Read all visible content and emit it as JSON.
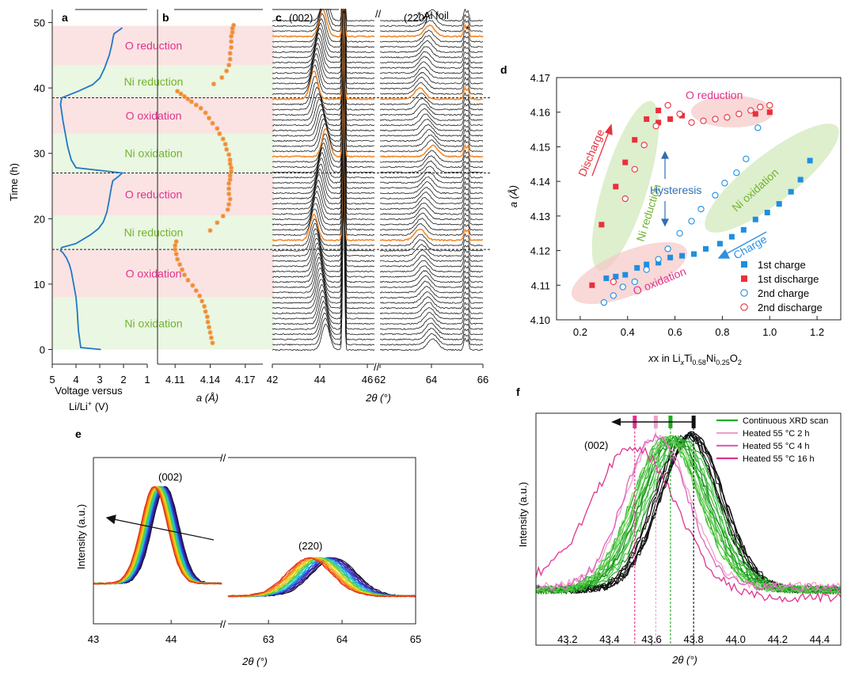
{
  "chart_data": [
    {
      "panel": "a",
      "type": "line",
      "xlabel_line1": "Voltage versus",
      "xlabel_line2": "Li/Li",
      "xlabel_sup": "+",
      "xlabel_end": " (V)",
      "ylabel": "Time (h)",
      "xlim": [
        5,
        1
      ],
      "ylim": [
        -2,
        52
      ],
      "x_ticks": [
        5,
        4,
        3,
        2,
        1
      ],
      "y_ticks": [
        0,
        10,
        20,
        30,
        40,
        50
      ],
      "regions": [
        {
          "label": "Ni oxidation",
          "y0": 0,
          "y1": 8,
          "color": "#eaf7e2",
          "text_color": "#72b32e"
        },
        {
          "label": "O oxidation",
          "y0": 8,
          "y1": 15.3,
          "color": "#fbe3e3",
          "text_color": "#e0338c"
        },
        {
          "label": "Ni reduction",
          "y0": 15.3,
          "y1": 20.5,
          "color": "#eaf7e2",
          "text_color": "#72b32e"
        },
        {
          "label": "O reduction",
          "y0": 20.5,
          "y1": 27,
          "color": "#fbe3e3",
          "text_color": "#e0338c"
        },
        {
          "label": "Ni oxidation",
          "y0": 27,
          "y1": 33,
          "color": "#eaf7e2",
          "text_color": "#72b32e"
        },
        {
          "label": "O oxidation",
          "y0": 33,
          "y1": 38.5,
          "color": "#fbe3e3",
          "text_color": "#e0338c"
        },
        {
          "label": "Ni reduction",
          "y0": 38.5,
          "y1": 43.5,
          "color": "#eaf7e2",
          "text_color": "#72b32e"
        },
        {
          "label": "O reduction",
          "y0": 43.5,
          "y1": 49.5,
          "color": "#fbe3e3",
          "text_color": "#e0338c"
        }
      ],
      "dashed_lines_y": [
        15.3,
        27,
        38.5
      ],
      "voltage": {
        "V": [
          2.95,
          3.8,
          3.9,
          3.95,
          4.0,
          4.05,
          4.1,
          4.15,
          4.2,
          4.28,
          4.4,
          4.55,
          4.65,
          4.6,
          4.0,
          3.4,
          3.05,
          2.85,
          2.7,
          2.62,
          2.55,
          2.5,
          2.45,
          2.2,
          2.05,
          4.0,
          4.2,
          4.35,
          4.45,
          4.55,
          4.65,
          4.6,
          3.9,
          3.3,
          3.0,
          2.8,
          2.6,
          2.5,
          2.45,
          2.4,
          2.2,
          2.05
        ],
        "t": [
          0,
          0.3,
          3,
          6,
          8,
          9,
          10,
          11,
          12,
          13,
          14,
          14.8,
          15.1,
          15.6,
          16.2,
          17.5,
          18.5,
          19.5,
          21,
          22.5,
          24,
          25,
          25.8,
          26.5,
          27.0,
          27.8,
          29,
          31,
          33,
          35,
          37.5,
          38.5,
          39.5,
          40.5,
          41.5,
          43,
          45,
          46.5,
          47.5,
          48.3,
          48.8,
          49.2
        ]
      }
    },
    {
      "panel": "b",
      "type": "scatter",
      "xlabel": "a (Å)",
      "xlim": [
        4.095,
        4.185
      ],
      "x_ticks": [
        "4.11",
        "4.14",
        "4.17"
      ],
      "x_tick_values": [
        4.11,
        4.14,
        4.17
      ],
      "a_values": [
        4.142,
        4.141,
        4.14,
        4.139,
        4.138,
        4.1375,
        4.136,
        4.135,
        4.133,
        4.131,
        4.128,
        4.125,
        4.121,
        4.118,
        4.116,
        4.114,
        4.112,
        4.111,
        4.11,
        4.11,
        4.111,
        4.14,
        4.146,
        4.151,
        4.155,
        4.156,
        4.157,
        4.156,
        4.156,
        4.156,
        4.157,
        4.157,
        4.158,
        4.158,
        4.157,
        4.157,
        4.156,
        4.154,
        4.153,
        4.151,
        4.148,
        4.146,
        4.142,
        4.139,
        4.136,
        4.132,
        4.128,
        4.124,
        4.121,
        4.118,
        4.115,
        4.112,
        4.143,
        4.15,
        4.154,
        4.156,
        4.157,
        4.157,
        4.158,
        4.158,
        4.158,
        4.159,
        4.159,
        4.16
      ],
      "t_values": [
        1,
        1.8,
        2.6,
        3.4,
        4.2,
        5,
        5.8,
        6.6,
        7.4,
        8.2,
        9,
        9.8,
        10.6,
        11.4,
        12.2,
        13,
        13.8,
        14.6,
        15.3,
        15.9,
        16.5,
        18.2,
        19.4,
        20.4,
        21.4,
        22.2,
        23,
        23.8,
        24.6,
        25.4,
        26,
        26.6,
        27.2,
        27.8,
        28.4,
        29,
        29.8,
        30.6,
        31.4,
        32.2,
        33,
        33.8,
        34.6,
        35.4,
        36.2,
        36.9,
        37.4,
        37.9,
        38.3,
        38.7,
        39.1,
        39.5,
        40.6,
        41.6,
        42.6,
        43.5,
        44.4,
        45.3,
        46.2,
        47.1,
        47.9,
        48.5,
        49.1,
        49.6
      ]
    },
    {
      "panel": "c",
      "type": "line",
      "xlabel": "2θ (°)",
      "x_ticks_left": [
        42,
        44,
        46
      ],
      "x_ticks_right": [
        62,
        64,
        66
      ],
      "xlim_left": [
        42,
        46.3
      ],
      "xlim_right": [
        62,
        66
      ],
      "peak_labels": [
        "(002)",
        "(220)"
      ],
      "legend": "* Al foil",
      "n_scans": 64,
      "highlighted_scans": [
        21,
        37,
        48,
        60
      ]
    },
    {
      "panel": "d",
      "type": "scatter",
      "xlabel": "x in Li",
      "xlabel_sub1": "x",
      "xlabel_mid": "Ti",
      "xlabel_sub2": "0.58",
      "xlabel_mid2": "Ni",
      "xlabel_sub3": "0.25",
      "xlabel_end": "O",
      "xlabel_sub4": "2",
      "ylabel": "a (Å)",
      "xlim": [
        0.1,
        1.3
      ],
      "ylim": [
        4.1,
        4.17
      ],
      "x_ticks": [
        "0.2",
        "0.4",
        "0.6",
        "0.8",
        "1.0",
        "1.2"
      ],
      "x_tick_values": [
        0.2,
        0.4,
        0.6,
        0.8,
        1.0,
        1.2
      ],
      "y_ticks": [
        "4.10",
        "4.11",
        "4.12",
        "4.13",
        "4.14",
        "4.15",
        "4.16",
        "4.17"
      ],
      "y_tick_values": [
        4.1,
        4.11,
        4.12,
        4.13,
        4.14,
        4.15,
        4.16,
        4.17
      ],
      "annotations": [
        "O reduction",
        "Ni oxidation",
        "Ni reduction",
        "O oxidation",
        "Hysteresis",
        "Discharge",
        "Charge"
      ],
      "series": [
        {
          "name": "1st charge",
          "marker": "square-filled",
          "color": "#1e8fe0",
          "x": [
            0.31,
            0.35,
            0.39,
            0.44,
            0.48,
            0.53,
            0.58,
            0.63,
            0.68,
            0.73,
            0.79,
            0.84,
            0.89,
            0.94,
            0.99,
            1.04,
            1.09,
            1.13,
            1.17
          ],
          "y": [
            4.112,
            4.1125,
            4.113,
            4.115,
            4.116,
            4.1165,
            4.118,
            4.1185,
            4.119,
            4.1205,
            4.122,
            4.124,
            4.126,
            4.129,
            4.131,
            4.1335,
            4.137,
            4.1405,
            4.146
          ]
        },
        {
          "name": "1st discharge",
          "marker": "square-filled",
          "color": "#e8313c",
          "x": [
            0.25,
            0.29,
            0.35,
            0.39,
            0.43,
            0.48,
            0.53,
            0.53,
            0.58,
            0.63,
            0.94,
            1.0
          ],
          "y": [
            4.11,
            4.1275,
            4.1385,
            4.1455,
            4.152,
            4.158,
            4.1605,
            4.157,
            4.158,
            4.159,
            4.1595,
            4.16
          ]
        },
        {
          "name": "2nd charge",
          "marker": "circle-open",
          "color": "#1e8fe0",
          "x": [
            0.3,
            0.34,
            0.38,
            0.43,
            0.48,
            0.53,
            0.57,
            0.62,
            0.67,
            0.71,
            0.77,
            0.81,
            0.86,
            0.9,
            0.95
          ],
          "y": [
            4.105,
            4.107,
            4.1095,
            4.111,
            4.1145,
            4.1175,
            4.1205,
            4.125,
            4.1285,
            4.132,
            4.136,
            4.1395,
            4.1425,
            4.1465,
            4.1555
          ]
        },
        {
          "name": "2nd discharge",
          "marker": "circle-open",
          "color": "#e8313c",
          "x": [
            0.34,
            0.39,
            0.43,
            0.47,
            0.52,
            0.57,
            0.62,
            0.67,
            0.72,
            0.77,
            0.82,
            0.87,
            0.92,
            0.96,
            1.0
          ],
          "y": [
            4.111,
            4.135,
            4.1435,
            4.1505,
            4.156,
            4.162,
            4.1595,
            4.157,
            4.1575,
            4.158,
            4.1585,
            4.1595,
            4.1605,
            4.1615,
            4.162
          ]
        }
      ]
    },
    {
      "panel": "e",
      "type": "line",
      "xlabel": "2θ (°)",
      "ylabel": "Intensity (a.u.)",
      "x_ticks_left": [
        43,
        44
      ],
      "x_ticks_right": [
        63,
        64,
        65
      ],
      "xlim_left": [
        43,
        44.65
      ],
      "xlim_right": [
        62.45,
        65
      ],
      "peak_labels": [
        "(002)",
        "(220)"
      ],
      "n_curves": 22,
      "peak_002_range": [
        43.78,
        43.93
      ],
      "peak_220_range": [
        63.55,
        63.9
      ]
    },
    {
      "panel": "f",
      "type": "line",
      "xlabel": "2θ (°)",
      "ylabel": "Intensity (a.u.)",
      "xlim": [
        43.05,
        44.5
      ],
      "x_ticks": [
        "43.2",
        "43.4",
        "43.6",
        "43.8",
        "44.0",
        "44.2",
        "44.4"
      ],
      "x_tick_values": [
        43.2,
        43.4,
        43.6,
        43.8,
        44.0,
        44.2,
        44.4
      ],
      "peak_label": "(002)",
      "series": [
        {
          "name": "Continuous XRD scan",
          "color": "#22aa22",
          "peak": 43.69
        },
        {
          "name": "Heated 55 °C 2 h",
          "color": "#f0a0c8",
          "peak": 43.63
        },
        {
          "name": "Heated 55 °C 4 h",
          "color": "#e060c0",
          "peak": 43.62
        },
        {
          "name": "Heated 55 °C 16 h",
          "color": "#e0338c",
          "peak": 43.52
        }
      ],
      "marker_lines": [
        {
          "x": 43.8,
          "color": "#111111"
        },
        {
          "x": 43.69,
          "color": "#22aa22"
        },
        {
          "x": 43.62,
          "color": "#f0a0c8"
        },
        {
          "x": 43.52,
          "color": "#e0338c"
        }
      ]
    }
  ],
  "labels": {
    "a": "a",
    "b": "b",
    "c": "c",
    "d": "d",
    "e": "e",
    "f": "f",
    "break": "//"
  }
}
